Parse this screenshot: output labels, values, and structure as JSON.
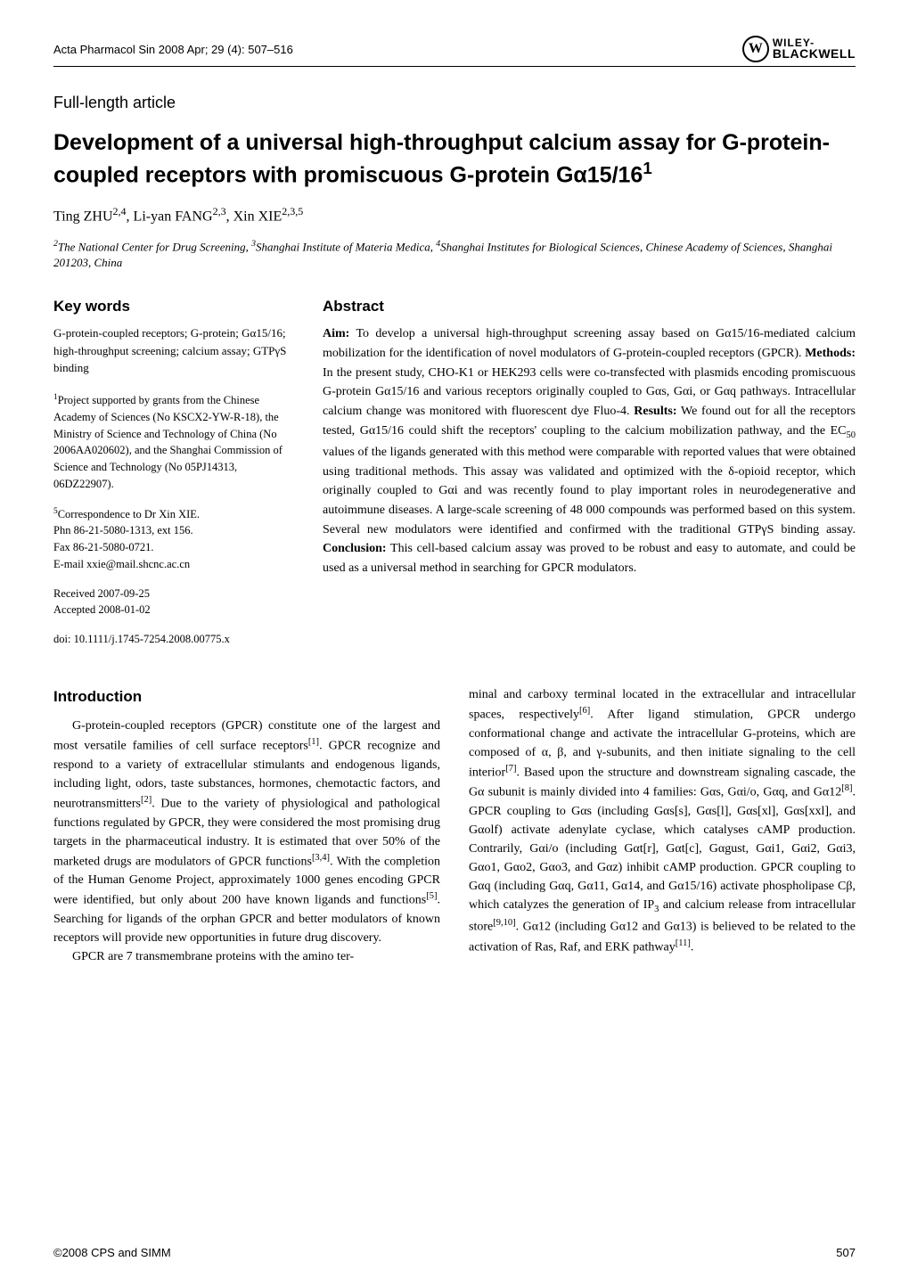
{
  "header": {
    "journal": "Acta Pharmacol Sin  2008 Apr; 29 (4): 507–516",
    "publisher_w": "W",
    "publisher_top": "WILEY-",
    "publisher_bottom": "BLACKWELL"
  },
  "article_type": "Full-length article",
  "title": "Development of a universal high-throughput calcium assay for G-protein-coupled receptors with promiscuous G-protein Gα15/16",
  "title_sup": "1",
  "authors": "Ting ZHU",
  "authors_sup1": "2,4",
  "authors_mid": ", Li-yan FANG",
  "authors_sup2": "2,3",
  "authors_end": ", Xin XIE",
  "authors_sup3": "2,3,5",
  "affiliations_sup1": "2",
  "affiliations_p1": "The National Center for Drug Screening, ",
  "affiliations_sup2": "3",
  "affiliations_p2": "Shanghai Institute of Materia Medica, ",
  "affiliations_sup3": "4",
  "affiliations_p3": "Shanghai Institutes for Biological Sciences, Chinese Academy of Sciences, Shanghai 201203, China",
  "keywords": {
    "heading": "Key words",
    "text": "G-protein-coupled receptors; G-protein; Gα15/16; high-throughput screening; calcium assay; GTPγS binding"
  },
  "funding": {
    "sup": "1",
    "text": "Project supported by grants from the Chinese Academy of Sciences (No KSCX2-YW-R-18), the Ministry of Science and Technology of China (No 2006AA020602), and the Shanghai Commission of Science and Technology (No 05PJ14313, 06DZ22907)."
  },
  "correspondence": {
    "sup": "5",
    "line1": "Correspondence to Dr Xin XIE.",
    "line2": "Phn 86-21-5080-1313, ext 156.",
    "line3": "Fax 86-21-5080-0721.",
    "line4": "E-mail xxie@mail.shcnc.ac.cn"
  },
  "dates": {
    "received": "Received 2007-09-25",
    "accepted": "Accepted 2008-01-02"
  },
  "doi": "doi: 10.1111/j.1745-7254.2008.00775.x",
  "abstract": {
    "heading": "Abstract",
    "aim_label": "Aim:",
    "aim": " To develop a universal high-throughput screening assay based on Gα15/16-mediated calcium mobilization for the identification of novel modulators of G-protein-coupled receptors (GPCR). ",
    "methods_label": "Methods:",
    "methods": " In the present study, CHO-K1 or HEK293 cells were co-transfected with plasmids encoding promiscuous G-protein Gα15/16 and various receptors originally coupled to Gαs, Gαi, or Gαq pathways. Intracellular calcium change was monitored with fluorescent dye Fluo-4. ",
    "results_label": "Results:",
    "results_p1": " We found out for all the receptors tested, Gα15/16 could shift the receptors' coupling to the calcium mobilization pathway, and the EC",
    "results_sub": "50",
    "results_p2": " values of the ligands generated with this method were comparable with reported values that were obtained using traditional methods. This assay was validated and optimized with the δ-opioid receptor, which originally coupled to Gαi and was recently found to play important roles in neurodegenerative and autoimmune diseases. A large-scale screening of 48 000 compounds was performed based on this system. Several new modulators were identified and confirmed with the traditional GTPγS binding assay. ",
    "conclusion_label": "Conclusion:",
    "conclusion": " This cell-based calcium assay was proved to be robust and easy to automate, and could be used as a universal method in searching for GPCR modulators."
  },
  "intro_heading": "Introduction",
  "body_left": {
    "p1a": "G-protein-coupled receptors (GPCR) constitute one of the largest and most versatile families of cell surface receptors",
    "p1_sup1": "[1]",
    "p1b": ". GPCR recognize and respond to a variety of extracellular stimulants and endogenous ligands, including light, odors, taste substances, hormones, chemotactic factors, and neurotransmitters",
    "p1_sup2": "[2]",
    "p1c": ". Due to the variety of physiological and pathological functions regulated by GPCR, they were considered the most promising drug targets in the pharmaceutical industry. It is estimated that over 50% of the marketed drugs are modulators of GPCR functions",
    "p1_sup3": "[3,4]",
    "p1d": ". With the completion of the Human Genome Project, approximately 1000 genes encoding GPCR were identified, but only about 200 have known ligands and functions",
    "p1_sup4": "[5]",
    "p1e": ". Searching for ligands of the orphan GPCR and better modulators of known receptors will provide new opportunities in future drug discovery.",
    "p2": "GPCR are 7 transmembrane proteins with the amino ter-"
  },
  "body_right": {
    "p1a": "minal and carboxy terminal located in the extracellular and intracellular spaces, respectively",
    "p1_sup1": "[6]",
    "p1b": ". After ligand stimulation, GPCR undergo conformational change and activate the intracellular G-proteins, which are composed of α, β, and γ-subunits, and then initiate signaling to the cell interior",
    "p1_sup2": "[7]",
    "p1c": ". Based upon the structure and downstream signaling cascade, the Gα subunit is mainly divided into 4 families: Gαs, Gαi/o, Gαq, and Gα12",
    "p1_sup3": "[8]",
    "p1d": ". GPCR coupling to Gαs (including Gαs[s], Gαs[l], Gαs[xl], Gαs[xxl], and Gαolf) activate adenylate cyclase, which catalyses cAMP production. Contrarily, Gαi/o (including Gαt[r], Gαt[c], Gαgust, Gαi1, Gαi2, Gαi3, Gαo1, Gαo2, Gαo3, and Gαz) inhibit cAMP production. GPCR coupling to Gαq (including Gαq, Gα11, Gα14, and Gα15/16) activate phospholipase Cβ, which catalyzes the generation of IP",
    "p1_sub": "3",
    "p1e": " and calcium release from intracellular store",
    "p1_sup4": "[9,10]",
    "p1f": ". Gα12 (including Gα12 and Gα13) is believed to be related to the activation of Ras, Raf, and ERK pathway",
    "p1_sup5": "[11]",
    "p1g": "."
  },
  "footer": {
    "copyright": "©2008 CPS and SIMM",
    "page": "507"
  }
}
